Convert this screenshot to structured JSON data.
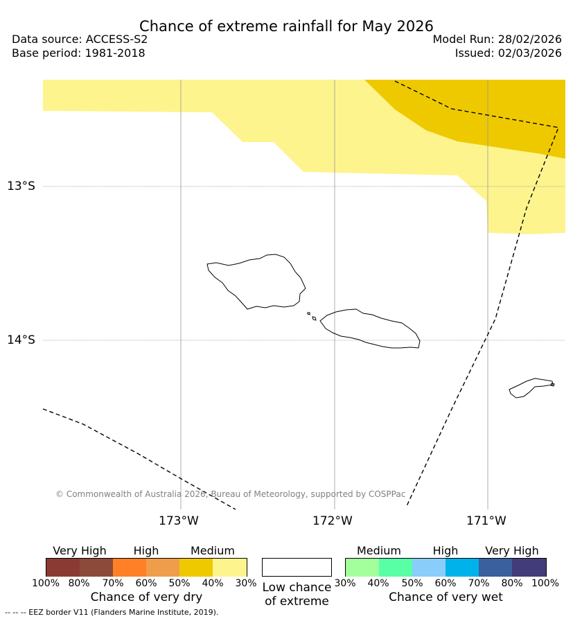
{
  "header": {
    "title": "Chance of extreme rainfall for May 2026",
    "data_source": "Data source: ACCESS-S2",
    "base_period": "Base period: 1981-2018",
    "model_run": "Model Run: 28/02/2026",
    "issued": "Issued: 02/03/2026"
  },
  "map": {
    "lat_labels": [
      "13°S",
      "14°S"
    ],
    "lon_labels": [
      "173°W",
      "172°W",
      "171°W"
    ],
    "copyright": "© Commonwealth of Australia 2026, Bureau of Meteorology, supported by COSPPac",
    "regions": [
      {
        "name": "30-40% chance of very dry",
        "color": "#fdf48d"
      },
      {
        "name": "40-50% chance of very dry",
        "color": "#eec900"
      }
    ],
    "features": [
      "Upolu island outline",
      "Savaii island outline",
      "Tutuila island outline",
      "EEZ border dashed line"
    ]
  },
  "legend": {
    "dry": {
      "groups": [
        "Very High",
        "High",
        "Medium"
      ],
      "ticks": [
        "100%",
        "80%",
        "70%",
        "60%",
        "50%",
        "40%",
        "30%"
      ],
      "colors": [
        "#8b3a33",
        "#8c4a3b",
        "#ff8026",
        "#ef9c4b",
        "#eec900",
        "#fdf48d"
      ],
      "title": "Chance of very dry"
    },
    "neutral": {
      "title_line1": "Low chance",
      "title_line2": "of extreme",
      "color": "#ffffff"
    },
    "wet": {
      "groups": [
        "Medium",
        "High",
        "Very High"
      ],
      "ticks": [
        "30%",
        "40%",
        "50%",
        "60%",
        "70%",
        "80%",
        "100%"
      ],
      "colors": [
        "#a3ff9b",
        "#58ffa5",
        "#89cdfa",
        "#00b2ea",
        "#3a609e",
        "#433c7a"
      ],
      "title": "Chance of very wet"
    }
  },
  "footnote": "--  --  -- EEZ border V11 (Flanders Marine Institute, 2019)."
}
